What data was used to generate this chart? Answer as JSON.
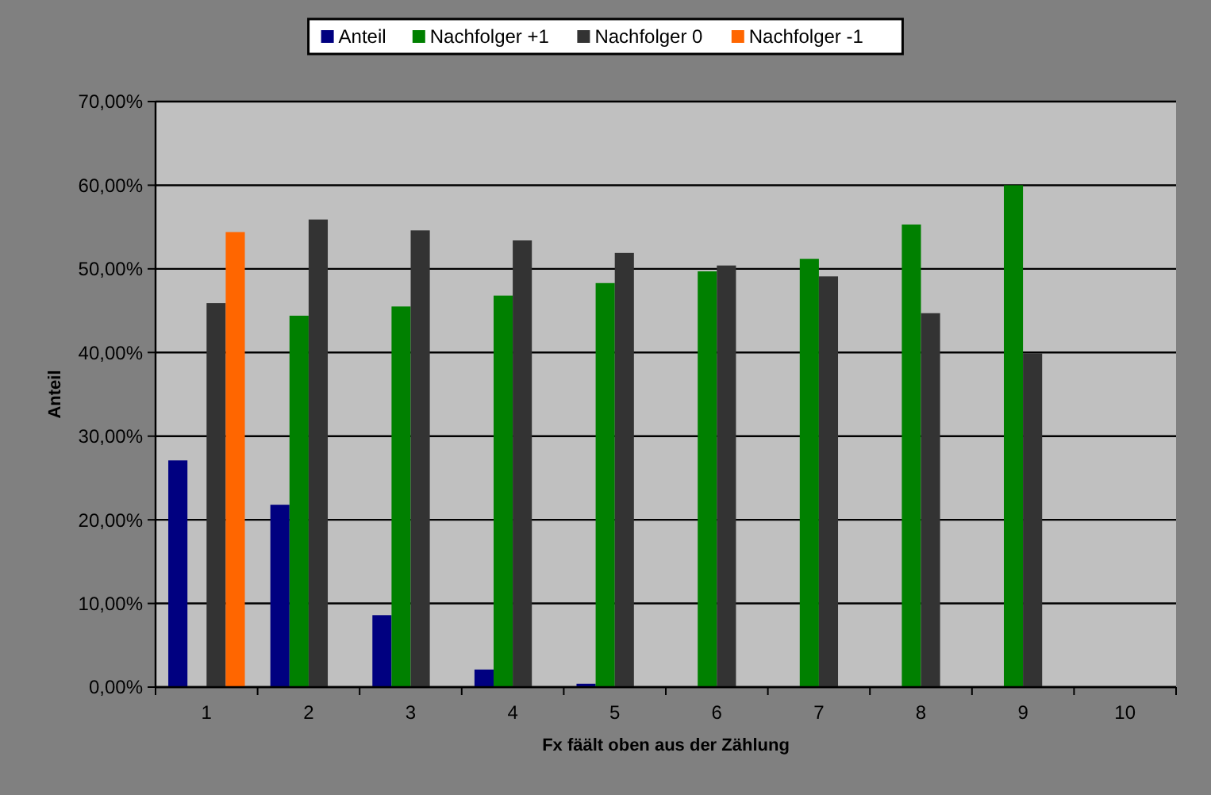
{
  "chart_data": {
    "type": "bar",
    "xlabel": "Fx fäält oben aus der Zählung",
    "ylabel": "Anteil",
    "categories": [
      "1",
      "2",
      "3",
      "4",
      "5",
      "6",
      "7",
      "8",
      "9",
      "10"
    ],
    "series": [
      {
        "name": "Anteil",
        "color": "#000080",
        "values": [
          27.1,
          21.8,
          8.6,
          2.1,
          0.4,
          null,
          null,
          null,
          null,
          null
        ]
      },
      {
        "name": "Nachfolger +1",
        "color": "#008000",
        "values": [
          null,
          44.4,
          45.5,
          46.8,
          48.3,
          49.7,
          51.2,
          55.3,
          60.0,
          null
        ]
      },
      {
        "name": "Nachfolger 0",
        "color": "#333333",
        "values": [
          45.9,
          55.9,
          54.6,
          53.4,
          51.9,
          50.4,
          49.1,
          44.7,
          39.9,
          null
        ]
      },
      {
        "name": "Nachfolger -1",
        "color": "#ff6600",
        "values": [
          54.4,
          null,
          null,
          null,
          null,
          null,
          null,
          null,
          null,
          null
        ]
      }
    ],
    "ylim": [
      0,
      70
    ],
    "yticks": [
      {
        "value": 0,
        "label": "0,00%"
      },
      {
        "value": 10,
        "label": "10,00%"
      },
      {
        "value": 20,
        "label": "20,00%"
      },
      {
        "value": 30,
        "label": "30,00%"
      },
      {
        "value": 40,
        "label": "40,00%"
      },
      {
        "value": 50,
        "label": "50,00%"
      },
      {
        "value": 60,
        "label": "60,00%"
      },
      {
        "value": 70,
        "label": "70,00%"
      }
    ],
    "grid": "y",
    "legend": "top"
  }
}
